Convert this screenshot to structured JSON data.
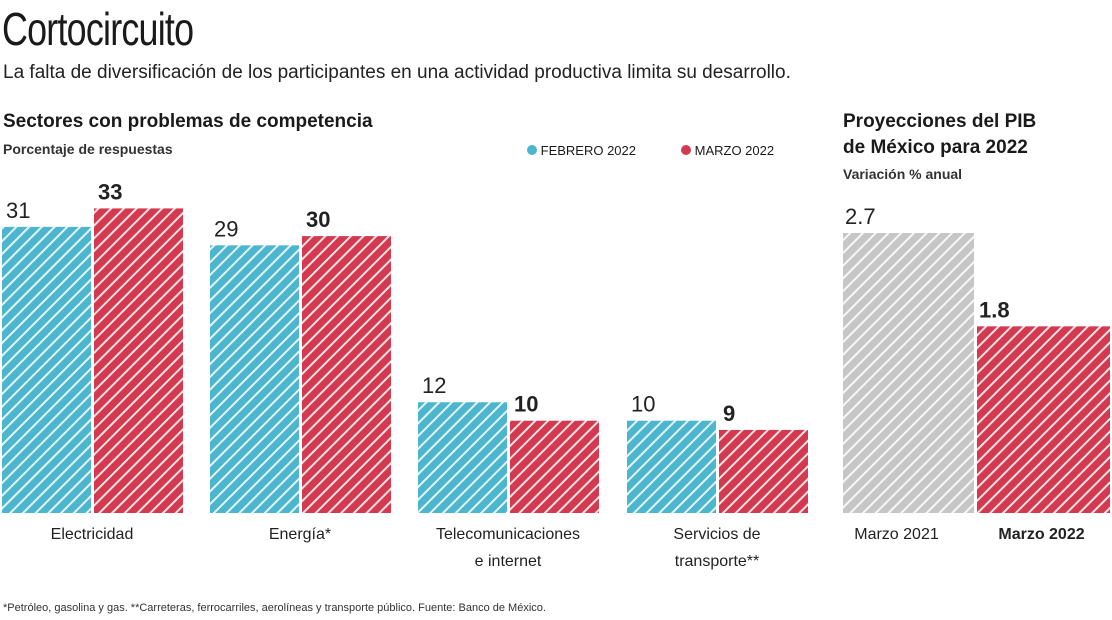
{
  "title": "Cortocircuito",
  "subtitle": "La falta de diversificación de los participantes en una actividad productiva limita su desarrollo.",
  "footnote": "*Petróleo, gasolina y gas. **Carreteras, ferrocarriles, aerolíneas y transporte público. Fuente: Banco de México.",
  "colors": {
    "febrero": "#4db6cf",
    "marzo": "#d3394f",
    "gray": "#c6c6c6"
  },
  "chart_data": [
    {
      "type": "bar",
      "title": "Sectores con problemas de competencia",
      "subtitle": "Porcentaje de respuestas",
      "legend_position": "top-right",
      "categories": [
        [
          "Electricidad"
        ],
        [
          "Energía*"
        ],
        [
          "Telecomunicaciones",
          "e internet"
        ],
        [
          "Servicios de",
          "transporte**"
        ]
      ],
      "series": [
        {
          "name": "FEBRERO 2022",
          "values": [
            31,
            29,
            12,
            10
          ]
        },
        {
          "name": "MARZO 2022",
          "values": [
            33,
            30,
            10,
            9
          ]
        }
      ],
      "grid": false
    },
    {
      "type": "bar",
      "title": [
        "Proyecciones del PIB",
        "de México para 2022"
      ],
      "subtitle": "Variación % anual",
      "categories": [
        "Marzo 2021",
        "Marzo 2022"
      ],
      "values": [
        2.7,
        1.8
      ],
      "labels": [
        "2.7",
        "1.8"
      ],
      "grid": false
    }
  ]
}
